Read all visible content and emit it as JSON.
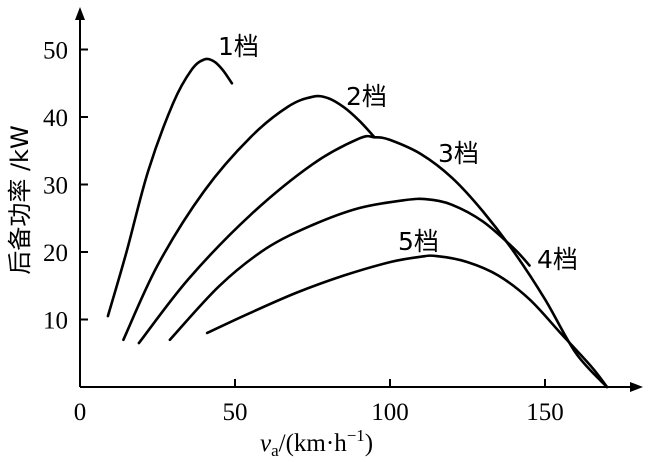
{
  "chart_data": {
    "type": "line",
    "xlabel": "v_a/(km·h⁻¹)",
    "xlabel_var": "v",
    "xlabel_sub": "a",
    "xlabel_unit_prefix": "/(km·h",
    "xlabel_unit_exp": "−1",
    "xlabel_unit_suffix": ")",
    "ylabel": "后备功率 /kW",
    "xlim": [
      0,
      180
    ],
    "ylim": [
      0,
      56
    ],
    "xticks": [
      0,
      50,
      100,
      150
    ],
    "yticks": [
      10,
      20,
      30,
      40,
      50
    ],
    "grid": false,
    "series": [
      {
        "name": "1档",
        "x": [
          9,
          15,
          22,
          30,
          36,
          40,
          43,
          46,
          49
        ],
        "y": [
          10.5,
          20,
          32,
          42,
          47,
          48.5,
          48.3,
          47,
          45
        ]
      },
      {
        "name": "2档",
        "x": [
          14,
          25,
          40,
          55,
          67,
          75,
          80,
          85,
          90,
          95
        ],
        "y": [
          7,
          18,
          29,
          37,
          41.5,
          43,
          42.8,
          41.5,
          39.5,
          37
        ]
      },
      {
        "name": "3档",
        "x": [
          19,
          35,
          55,
          75,
          90,
          95,
          100,
          110,
          120,
          130,
          140,
          150,
          160,
          170
        ],
        "y": [
          6.5,
          16,
          25.5,
          33,
          36.8,
          37,
          36.6,
          34.5,
          31,
          26,
          20,
          13,
          5,
          0
        ]
      },
      {
        "name": "4档",
        "x": [
          29,
          45,
          60,
          75,
          90,
          105,
          112,
          120,
          130,
          140,
          145
        ],
        "y": [
          7,
          15,
          20.5,
          24,
          26.5,
          27.7,
          27.8,
          27,
          24.5,
          20.5,
          18
        ]
      },
      {
        "name": "5档",
        "x": [
          41,
          55,
          70,
          85,
          100,
          110,
          115,
          125,
          135,
          145,
          155,
          165,
          170
        ],
        "y": [
          8,
          11,
          14,
          16.5,
          18.5,
          19.3,
          19.4,
          18.5,
          16.5,
          13,
          8,
          3,
          0
        ]
      }
    ],
    "gear_labels": [
      "1档",
      "2档",
      "3档",
      "4档",
      "5档"
    ]
  }
}
